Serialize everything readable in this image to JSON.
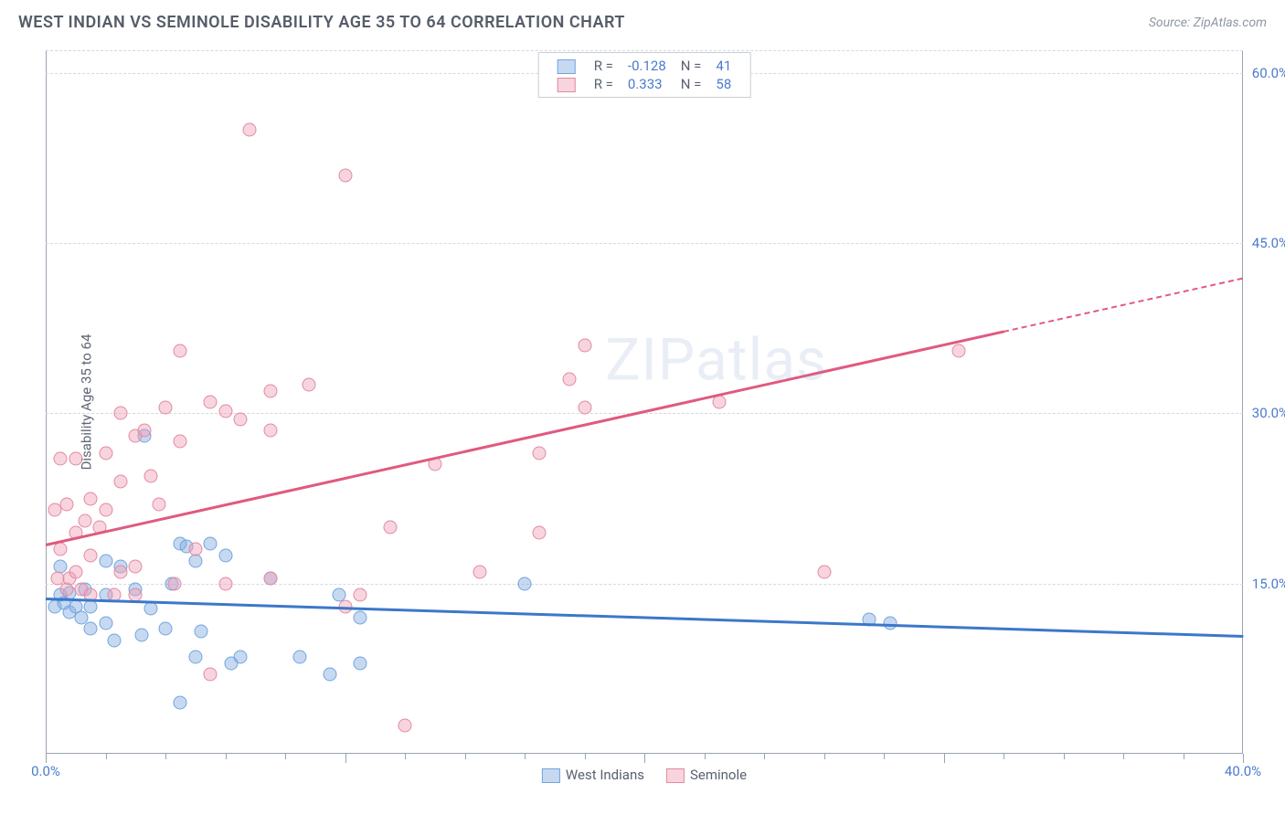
{
  "title": "WEST INDIAN VS SEMINOLE DISABILITY AGE 35 TO 64 CORRELATION CHART",
  "source": "Source: ZipAtlas.com",
  "watermark": "ZIPatlas",
  "y_axis_label": "Disability Age 35 to 64",
  "chart": {
    "type": "scatter",
    "xlim": [
      0,
      40
    ],
    "ylim": [
      0,
      62
    ],
    "x_ticks": {
      "major_step": 10,
      "minor_step": 2,
      "labels": [
        {
          "v": 0,
          "t": "0.0%"
        },
        {
          "v": 40,
          "t": "40.0%"
        }
      ]
    },
    "y_ticks": {
      "values": [
        15,
        30,
        45,
        60
      ],
      "labels": [
        "15.0%",
        "30.0%",
        "45.0%",
        "60.0%"
      ]
    },
    "grid_color": "#d5d9e0",
    "axis_color": "#9aa2b1",
    "background_color": "#ffffff",
    "watermark_color": "rgba(120,150,200,0.16)"
  },
  "series": [
    {
      "name": "West Indians",
      "stroke": "#6fa5e0",
      "fill": "rgba(130,170,225,0.45)",
      "marker_size": 15,
      "trend": {
        "x1": 0,
        "y1": 13.8,
        "x2": 40,
        "y2": 10.5,
        "solid_to": 40,
        "color": "#3b78c9"
      },
      "R": "-0.128",
      "N": "41",
      "points": [
        [
          0.3,
          13.0
        ],
        [
          0.5,
          14.0
        ],
        [
          0.6,
          13.3
        ],
        [
          0.8,
          12.5
        ],
        [
          0.8,
          14.2
        ],
        [
          0.5,
          16.5
        ],
        [
          1.0,
          13.0
        ],
        [
          1.2,
          12.0
        ],
        [
          1.3,
          14.5
        ],
        [
          1.5,
          11.0
        ],
        [
          1.5,
          13.0
        ],
        [
          2.0,
          11.5
        ],
        [
          2.0,
          17.0
        ],
        [
          2.3,
          10.0
        ],
        [
          2.5,
          16.5
        ],
        [
          2.0,
          14.0
        ],
        [
          3.2,
          10.5
        ],
        [
          3.0,
          14.5
        ],
        [
          3.5,
          12.8
        ],
        [
          3.3,
          28.0
        ],
        [
          4.0,
          11.0
        ],
        [
          4.2,
          15.0
        ],
        [
          4.5,
          18.5
        ],
        [
          4.7,
          18.3
        ],
        [
          4.5,
          4.5
        ],
        [
          5.0,
          17.0
        ],
        [
          5.2,
          10.8
        ],
        [
          5.0,
          8.5
        ],
        [
          5.5,
          18.5
        ],
        [
          6.0,
          17.5
        ],
        [
          6.2,
          8.0
        ],
        [
          6.5,
          8.5
        ],
        [
          7.5,
          15.5
        ],
        [
          8.5,
          8.5
        ],
        [
          9.5,
          7.0
        ],
        [
          9.8,
          14.0
        ],
        [
          10.5,
          8.0
        ],
        [
          10.5,
          12.0
        ],
        [
          16.0,
          15.0
        ],
        [
          27.5,
          11.8
        ],
        [
          28.2,
          11.5
        ]
      ]
    },
    {
      "name": "Seminole",
      "stroke": "#e28aa0",
      "fill": "rgba(240,160,185,0.45)",
      "marker_size": 15,
      "trend": {
        "x1": 0,
        "y1": 18.5,
        "x2": 40,
        "y2": 42.0,
        "solid_to": 32,
        "color": "#e05a7f"
      },
      "R": "0.333",
      "N": "58",
      "points": [
        [
          0.3,
          21.5
        ],
        [
          0.4,
          15.5
        ],
        [
          0.5,
          18.0
        ],
        [
          0.7,
          14.5
        ],
        [
          0.7,
          22.0
        ],
        [
          0.5,
          26.0
        ],
        [
          0.8,
          15.5
        ],
        [
          1.0,
          16.0
        ],
        [
          1.0,
          19.5
        ],
        [
          1.2,
          14.5
        ],
        [
          1.3,
          20.5
        ],
        [
          1.0,
          26.0
        ],
        [
          1.5,
          17.5
        ],
        [
          1.5,
          14.0
        ],
        [
          1.8,
          20.0
        ],
        [
          1.5,
          22.5
        ],
        [
          2.0,
          26.5
        ],
        [
          2.0,
          21.5
        ],
        [
          2.3,
          14.0
        ],
        [
          2.5,
          16.0
        ],
        [
          2.5,
          24.0
        ],
        [
          2.5,
          30.0
        ],
        [
          3.0,
          16.5
        ],
        [
          3.0,
          28.0
        ],
        [
          3.0,
          14.0
        ],
        [
          3.3,
          28.5
        ],
        [
          3.5,
          24.5
        ],
        [
          3.8,
          22.0
        ],
        [
          4.0,
          30.5
        ],
        [
          4.3,
          15.0
        ],
        [
          4.5,
          27.5
        ],
        [
          4.5,
          35.5
        ],
        [
          5.0,
          18.0
        ],
        [
          5.5,
          7.0
        ],
        [
          5.5,
          31.0
        ],
        [
          6.0,
          15.0
        ],
        [
          6.0,
          30.2
        ],
        [
          6.5,
          29.5
        ],
        [
          6.8,
          55.0
        ],
        [
          7.5,
          15.5
        ],
        [
          7.5,
          28.5
        ],
        [
          7.5,
          32.0
        ],
        [
          8.8,
          32.5
        ],
        [
          10.0,
          13.0
        ],
        [
          10.0,
          51.0
        ],
        [
          10.5,
          14.0
        ],
        [
          11.5,
          20.0
        ],
        [
          12.0,
          2.5
        ],
        [
          13.0,
          25.5
        ],
        [
          14.5,
          16.0
        ],
        [
          16.5,
          26.5
        ],
        [
          16.5,
          19.5
        ],
        [
          17.5,
          33.0
        ],
        [
          18.0,
          36.0
        ],
        [
          18.0,
          30.5
        ],
        [
          22.5,
          31.0
        ],
        [
          26.0,
          16.0
        ],
        [
          30.5,
          35.5
        ]
      ]
    }
  ],
  "legend_bottom": [
    "West Indians",
    "Seminole"
  ]
}
